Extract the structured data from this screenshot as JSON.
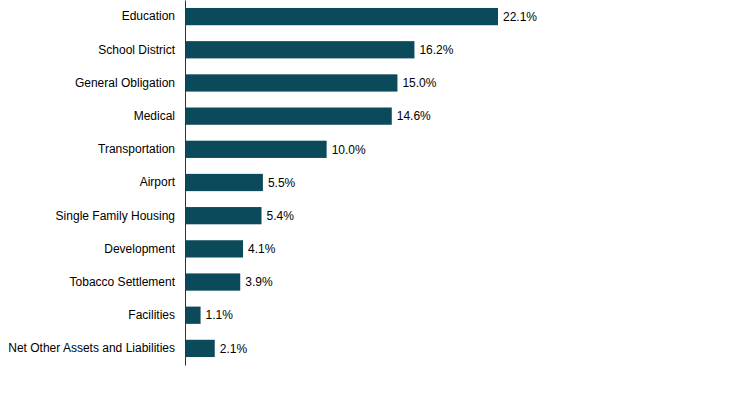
{
  "chart_data": {
    "type": "bar",
    "orientation": "horizontal",
    "data_labels": true,
    "tick_labels": "y",
    "color": "#0b4a5a",
    "categories": [
      "Education",
      "School District",
      "General Obligation",
      "Medical",
      "Transportation",
      "Airport",
      "Single Family Housing",
      "Development",
      "Tobacco Settlement",
      "Facilities",
      "Net Other Assets and Liabilities"
    ],
    "values": [
      22.1,
      16.2,
      15.0,
      14.6,
      10.0,
      5.5,
      5.4,
      4.1,
      3.9,
      1.1,
      2.1
    ],
    "value_labels": [
      "22.1%",
      "16.2%",
      "15.0%",
      "14.6%",
      "10.0%",
      "5.5%",
      "5.4%",
      "4.1%",
      "3.9%",
      "1.1%",
      "2.1%"
    ]
  }
}
